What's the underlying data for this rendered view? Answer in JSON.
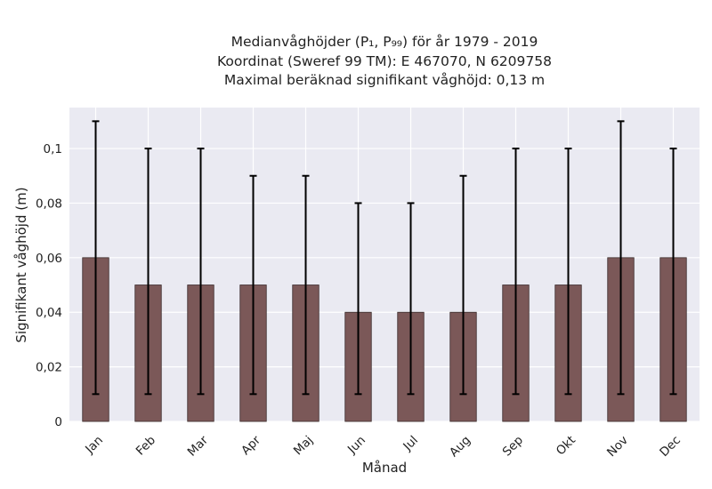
{
  "chart_data": {
    "type": "bar",
    "title_lines": [
      "Medianvåghöjder (P₁, P₉₉) för år 1979 - 2019",
      "Koordinat (Sweref 99 TM): E 467070, N 6209758",
      "Maximal beräknad signifikant våghöjd: 0,13 m"
    ],
    "xlabel": "Månad",
    "ylabel": "Signifikant våghöjd (m)",
    "categories": [
      "Jan",
      "Feb",
      "Mar",
      "Apr",
      "Maj",
      "Jun",
      "Jul",
      "Aug",
      "Sep",
      "Okt",
      "Nov",
      "Dec"
    ],
    "values": [
      0.06,
      0.05,
      0.05,
      0.05,
      0.05,
      0.04,
      0.04,
      0.04,
      0.05,
      0.05,
      0.06,
      0.06
    ],
    "error_low": [
      0.01,
      0.01,
      0.01,
      0.01,
      0.01,
      0.01,
      0.01,
      0.01,
      0.01,
      0.01,
      0.01,
      0.01
    ],
    "error_high": [
      0.11,
      0.1,
      0.1,
      0.09,
      0.09,
      0.08,
      0.08,
      0.09,
      0.1,
      0.1,
      0.11,
      0.1
    ],
    "ylim": [
      0,
      0.115
    ],
    "yticks": [
      0,
      0.02,
      0.04,
      0.06,
      0.08,
      0.1
    ],
    "ytick_labels": [
      "0",
      "0,02",
      "0,04",
      "0,06",
      "0,08",
      "0,1"
    ],
    "grid": true,
    "colors": {
      "bar": "#7b5858",
      "bar_edge": "#3a2a2a",
      "error": "#000000",
      "plot_bg": "#eaeaf2",
      "grid": "#ffffff"
    }
  }
}
